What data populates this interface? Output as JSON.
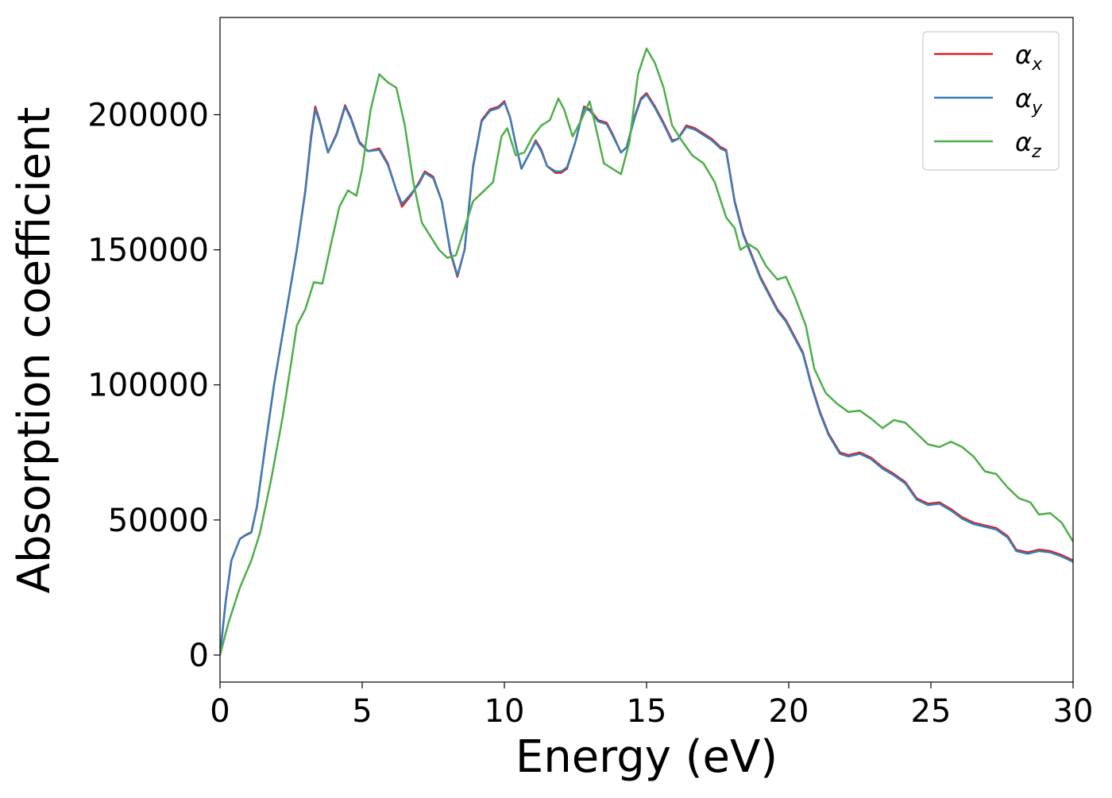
{
  "chart_data": {
    "type": "line",
    "title": "",
    "xlabel": "Energy (eV)",
    "ylabel": "Absorption coefficient",
    "xlim": [
      0,
      30
    ],
    "ylim": [
      -10000,
      236000
    ],
    "xticks": [
      0,
      5,
      10,
      15,
      20,
      25,
      30
    ],
    "yticks": [
      0,
      50000,
      100000,
      150000,
      200000
    ],
    "grid": false,
    "legend_position": "top-right",
    "series": [
      {
        "name": "α_x",
        "legend_main": "α",
        "legend_sub": "x",
        "color": "#e41a1c",
        "points": [
          [
            0,
            0
          ],
          [
            0.2,
            20000
          ],
          [
            0.4,
            35000
          ],
          [
            0.7,
            43000
          ],
          [
            0.9,
            44500
          ],
          [
            1.1,
            45500
          ],
          [
            1.3,
            55000
          ],
          [
            1.6,
            78000
          ],
          [
            1.9,
            100000
          ],
          [
            2.3,
            125000
          ],
          [
            2.7,
            150000
          ],
          [
            3.0,
            172000
          ],
          [
            3.2,
            192000
          ],
          [
            3.35,
            203000
          ],
          [
            3.5,
            198000
          ],
          [
            3.8,
            186000
          ],
          [
            4.1,
            193000
          ],
          [
            4.4,
            203500
          ],
          [
            4.6,
            199000
          ],
          [
            4.9,
            190000
          ],
          [
            5.2,
            186500
          ],
          [
            5.6,
            187500
          ],
          [
            5.9,
            182000
          ],
          [
            6.2,
            172000
          ],
          [
            6.4,
            166000
          ],
          [
            6.7,
            170000
          ],
          [
            7.0,
            175000
          ],
          [
            7.2,
            179000
          ],
          [
            7.5,
            177000
          ],
          [
            7.8,
            168000
          ],
          [
            8.1,
            149000
          ],
          [
            8.35,
            140000
          ],
          [
            8.6,
            150000
          ],
          [
            8.9,
            181000
          ],
          [
            9.2,
            198000
          ],
          [
            9.5,
            202000
          ],
          [
            9.8,
            203000
          ],
          [
            10.0,
            205000
          ],
          [
            10.2,
            199000
          ],
          [
            10.4,
            189000
          ],
          [
            10.6,
            180000
          ],
          [
            10.9,
            186000
          ],
          [
            11.1,
            190500
          ],
          [
            11.3,
            187000
          ],
          [
            11.5,
            181000
          ],
          [
            11.8,
            178500
          ],
          [
            12.0,
            178500
          ],
          [
            12.2,
            180000
          ],
          [
            12.5,
            190000
          ],
          [
            12.8,
            203000
          ],
          [
            13.0,
            202000
          ],
          [
            13.3,
            198000
          ],
          [
            13.6,
            197000
          ],
          [
            13.8,
            193000
          ],
          [
            14.1,
            186000
          ],
          [
            14.3,
            188000
          ],
          [
            14.6,
            200000
          ],
          [
            14.8,
            206000
          ],
          [
            15.0,
            208000
          ],
          [
            15.3,
            203000
          ],
          [
            15.6,
            197000
          ],
          [
            15.9,
            190500
          ],
          [
            16.1,
            191000
          ],
          [
            16.4,
            196000
          ],
          [
            16.7,
            195000
          ],
          [
            17.0,
            193000
          ],
          [
            17.3,
            191000
          ],
          [
            17.6,
            188000
          ],
          [
            17.8,
            187000
          ],
          [
            18.1,
            168000
          ],
          [
            18.4,
            156000
          ],
          [
            18.7,
            148000
          ],
          [
            19.0,
            140000
          ],
          [
            19.3,
            134000
          ],
          [
            19.6,
            128000
          ],
          [
            19.9,
            124000
          ],
          [
            20.2,
            118000
          ],
          [
            20.5,
            112000
          ],
          [
            20.8,
            100000
          ],
          [
            21.1,
            90000
          ],
          [
            21.4,
            82000
          ],
          [
            21.8,
            75000
          ],
          [
            22.1,
            74000
          ],
          [
            22.5,
            75000
          ],
          [
            22.9,
            73000
          ],
          [
            23.3,
            69500
          ],
          [
            23.7,
            67000
          ],
          [
            24.1,
            64000
          ],
          [
            24.5,
            58000
          ],
          [
            24.9,
            56000
          ],
          [
            25.3,
            56500
          ],
          [
            25.7,
            54000
          ],
          [
            26.1,
            51000
          ],
          [
            26.5,
            49000
          ],
          [
            26.9,
            48000
          ],
          [
            27.3,
            47000
          ],
          [
            27.7,
            44000
          ],
          [
            28.0,
            39000
          ],
          [
            28.4,
            38000
          ],
          [
            28.8,
            39000
          ],
          [
            29.2,
            38500
          ],
          [
            29.6,
            37000
          ],
          [
            30.0,
            35000
          ]
        ]
      },
      {
        "name": "α_y",
        "legend_main": "α",
        "legend_sub": "y",
        "color": "#377eb8",
        "points": [
          [
            0,
            0
          ],
          [
            0.2,
            20000
          ],
          [
            0.4,
            35000
          ],
          [
            0.7,
            43000
          ],
          [
            0.9,
            44300
          ],
          [
            1.1,
            45300
          ],
          [
            1.3,
            55000
          ],
          [
            1.6,
            78000
          ],
          [
            1.9,
            100000
          ],
          [
            2.3,
            125000
          ],
          [
            2.7,
            150000
          ],
          [
            3.0,
            171500
          ],
          [
            3.2,
            191000
          ],
          [
            3.35,
            202000
          ],
          [
            3.5,
            197500
          ],
          [
            3.8,
            186000
          ],
          [
            4.1,
            192500
          ],
          [
            4.4,
            203000
          ],
          [
            4.6,
            198500
          ],
          [
            4.9,
            189500
          ],
          [
            5.2,
            186500
          ],
          [
            5.6,
            187000
          ],
          [
            5.9,
            181500
          ],
          [
            6.2,
            172000
          ],
          [
            6.4,
            167000
          ],
          [
            6.7,
            170500
          ],
          [
            7.0,
            174500
          ],
          [
            7.2,
            178500
          ],
          [
            7.5,
            176500
          ],
          [
            7.8,
            168000
          ],
          [
            8.1,
            149500
          ],
          [
            8.35,
            140500
          ],
          [
            8.6,
            150000
          ],
          [
            8.9,
            180500
          ],
          [
            9.2,
            197500
          ],
          [
            9.5,
            201500
          ],
          [
            9.8,
            202500
          ],
          [
            10.0,
            204500
          ],
          [
            10.2,
            199000
          ],
          [
            10.4,
            189000
          ],
          [
            10.6,
            180000
          ],
          [
            10.9,
            186000
          ],
          [
            11.1,
            190000
          ],
          [
            11.3,
            186500
          ],
          [
            11.5,
            181000
          ],
          [
            11.8,
            179000
          ],
          [
            12.0,
            179000
          ],
          [
            12.2,
            180500
          ],
          [
            12.5,
            190000
          ],
          [
            12.8,
            202500
          ],
          [
            13.0,
            201500
          ],
          [
            13.3,
            197500
          ],
          [
            13.6,
            196500
          ],
          [
            13.8,
            192500
          ],
          [
            14.1,
            186000
          ],
          [
            14.3,
            188000
          ],
          [
            14.6,
            199500
          ],
          [
            14.8,
            205500
          ],
          [
            15.0,
            207500
          ],
          [
            15.3,
            202500
          ],
          [
            15.6,
            196500
          ],
          [
            15.9,
            190000
          ],
          [
            16.1,
            191000
          ],
          [
            16.4,
            195500
          ],
          [
            16.7,
            194500
          ],
          [
            17.0,
            192500
          ],
          [
            17.3,
            190500
          ],
          [
            17.6,
            187500
          ],
          [
            17.8,
            186500
          ],
          [
            18.1,
            167500
          ],
          [
            18.4,
            155500
          ],
          [
            18.7,
            147500
          ],
          [
            19.0,
            139500
          ],
          [
            19.3,
            133500
          ],
          [
            19.6,
            127500
          ],
          [
            19.9,
            123500
          ],
          [
            20.2,
            117500
          ],
          [
            20.5,
            111500
          ],
          [
            20.8,
            99500
          ],
          [
            21.1,
            89500
          ],
          [
            21.4,
            81500
          ],
          [
            21.8,
            74500
          ],
          [
            22.1,
            73500
          ],
          [
            22.5,
            74500
          ],
          [
            22.9,
            72500
          ],
          [
            23.3,
            69000
          ],
          [
            23.7,
            66500
          ],
          [
            24.1,
            63500
          ],
          [
            24.5,
            57500
          ],
          [
            24.9,
            55500
          ],
          [
            25.3,
            56000
          ],
          [
            25.7,
            53500
          ],
          [
            26.1,
            50500
          ],
          [
            26.5,
            48500
          ],
          [
            26.9,
            47500
          ],
          [
            27.3,
            46500
          ],
          [
            27.7,
            43500
          ],
          [
            28.0,
            38500
          ],
          [
            28.4,
            37500
          ],
          [
            28.8,
            38500
          ],
          [
            29.2,
            38000
          ],
          [
            29.6,
            36500
          ],
          [
            30.0,
            34500
          ]
        ]
      },
      {
        "name": "α_z",
        "legend_main": "α",
        "legend_sub": "z",
        "color": "#4daf4a",
        "points": [
          [
            0,
            0
          ],
          [
            0.3,
            12000
          ],
          [
            0.7,
            25000
          ],
          [
            1.1,
            35000
          ],
          [
            1.4,
            45000
          ],
          [
            1.8,
            65000
          ],
          [
            2.2,
            88000
          ],
          [
            2.5,
            108000
          ],
          [
            2.7,
            122000
          ],
          [
            3.0,
            128000
          ],
          [
            3.3,
            138000
          ],
          [
            3.6,
            137500
          ],
          [
            3.9,
            152000
          ],
          [
            4.2,
            166000
          ],
          [
            4.5,
            172000
          ],
          [
            4.8,
            170000
          ],
          [
            5.0,
            180000
          ],
          [
            5.3,
            202000
          ],
          [
            5.6,
            215000
          ],
          [
            5.9,
            212000
          ],
          [
            6.2,
            210000
          ],
          [
            6.5,
            196000
          ],
          [
            6.8,
            175000
          ],
          [
            7.1,
            160000
          ],
          [
            7.4,
            155000
          ],
          [
            7.7,
            150000
          ],
          [
            8.0,
            147000
          ],
          [
            8.3,
            148000
          ],
          [
            8.6,
            158000
          ],
          [
            8.9,
            168000
          ],
          [
            9.2,
            171000
          ],
          [
            9.6,
            175000
          ],
          [
            9.9,
            192000
          ],
          [
            10.1,
            195000
          ],
          [
            10.4,
            185000
          ],
          [
            10.7,
            186000
          ],
          [
            11.0,
            192000
          ],
          [
            11.3,
            196000
          ],
          [
            11.6,
            198000
          ],
          [
            11.9,
            206000
          ],
          [
            12.1,
            202000
          ],
          [
            12.4,
            192000
          ],
          [
            12.7,
            198000
          ],
          [
            13.0,
            205000
          ],
          [
            13.2,
            196000
          ],
          [
            13.5,
            182000
          ],
          [
            13.8,
            180000
          ],
          [
            14.1,
            178000
          ],
          [
            14.4,
            190000
          ],
          [
            14.7,
            215000
          ],
          [
            15.0,
            224500
          ],
          [
            15.3,
            219000
          ],
          [
            15.6,
            210000
          ],
          [
            15.9,
            196000
          ],
          [
            16.2,
            191000
          ],
          [
            16.6,
            185000
          ],
          [
            17.0,
            182000
          ],
          [
            17.4,
            175000
          ],
          [
            17.8,
            162000
          ],
          [
            18.1,
            158000
          ],
          [
            18.3,
            150000
          ],
          [
            18.6,
            152000
          ],
          [
            18.9,
            150000
          ],
          [
            19.2,
            144000
          ],
          [
            19.6,
            139000
          ],
          [
            19.9,
            140000
          ],
          [
            20.2,
            133000
          ],
          [
            20.6,
            122000
          ],
          [
            20.9,
            106000
          ],
          [
            21.3,
            97000
          ],
          [
            21.7,
            93000
          ],
          [
            22.1,
            90000
          ],
          [
            22.5,
            90500
          ],
          [
            22.9,
            87500
          ],
          [
            23.3,
            84000
          ],
          [
            23.7,
            87000
          ],
          [
            24.1,
            86000
          ],
          [
            24.5,
            82000
          ],
          [
            24.9,
            78000
          ],
          [
            25.3,
            77000
          ],
          [
            25.7,
            79000
          ],
          [
            26.1,
            77000
          ],
          [
            26.5,
            73500
          ],
          [
            26.9,
            68000
          ],
          [
            27.3,
            67000
          ],
          [
            27.7,
            62000
          ],
          [
            28.1,
            58000
          ],
          [
            28.5,
            56500
          ],
          [
            28.8,
            52000
          ],
          [
            29.2,
            52500
          ],
          [
            29.6,
            49000
          ],
          [
            30.0,
            42000
          ]
        ]
      }
    ]
  }
}
